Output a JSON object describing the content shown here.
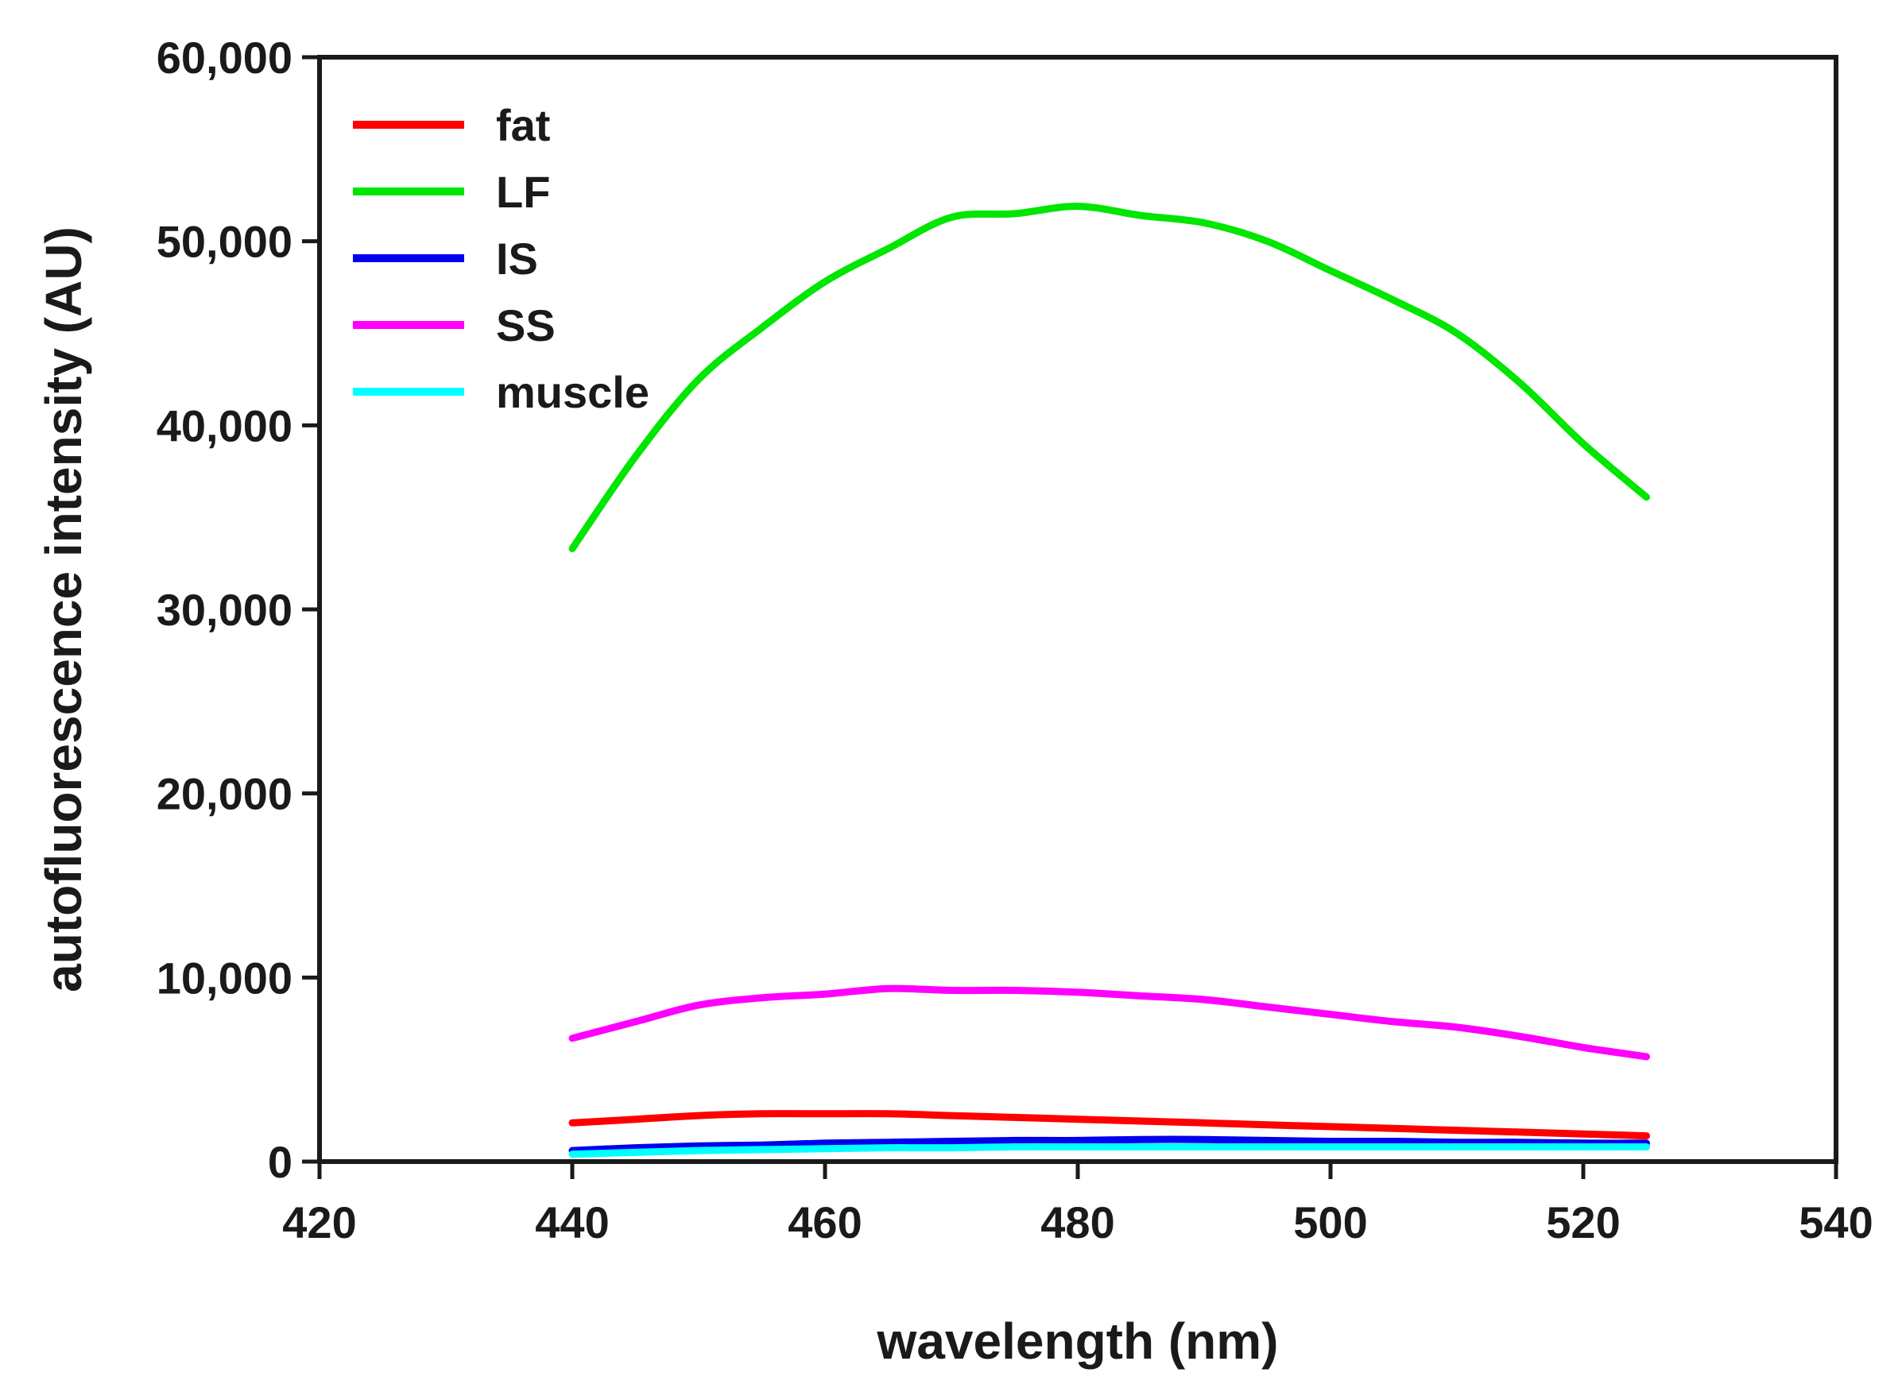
{
  "chart_data": {
    "type": "line",
    "title": "",
    "xlabel": "wavelength (nm)",
    "ylabel": "autofluorescence intensity (AU)",
    "xlim": [
      420,
      540
    ],
    "ylim": [
      0,
      60000
    ],
    "x_ticks": [
      420,
      440,
      460,
      480,
      500,
      520,
      540
    ],
    "x_tick_labels": [
      "420",
      "440",
      "460",
      "480",
      "500",
      "520",
      "540"
    ],
    "y_ticks": [
      0,
      10000,
      20000,
      30000,
      40000,
      50000,
      60000
    ],
    "y_tick_labels": [
      "0",
      "10,000",
      "20,000",
      "30,000",
      "40,000",
      "50,000",
      "60,000"
    ],
    "legend_position": "top-left",
    "x": [
      440,
      445,
      450,
      455,
      460,
      465,
      470,
      475,
      480,
      485,
      490,
      495,
      500,
      505,
      510,
      515,
      520,
      525
    ],
    "series": [
      {
        "name": "fat",
        "color": "#ff0000",
        "values": [
          2100,
          2300,
          2500,
          2600,
          2600,
          2600,
          2500,
          2400,
          2300,
          2200,
          2100,
          2000,
          1900,
          1800,
          1700,
          1600,
          1500,
          1400
        ]
      },
      {
        "name": "LF",
        "color": "#00e600",
        "values": [
          33300,
          38300,
          42500,
          45300,
          47800,
          49600,
          51300,
          51500,
          51900,
          51400,
          51000,
          50000,
          48400,
          46800,
          45000,
          42300,
          39000,
          36100
        ]
      },
      {
        "name": "IS",
        "color": "#0000ee",
        "values": [
          600,
          750,
          850,
          900,
          1000,
          1050,
          1100,
          1150,
          1150,
          1200,
          1200,
          1150,
          1100,
          1100,
          1050,
          1050,
          1000,
          1000
        ]
      },
      {
        "name": "SS",
        "color": "#ff00ff",
        "values": [
          6700,
          7600,
          8500,
          8900,
          9100,
          9400,
          9300,
          9300,
          9200,
          9000,
          8800,
          8400,
          8000,
          7600,
          7300,
          6800,
          6200,
          5700
        ]
      },
      {
        "name": "muscle",
        "color": "#00ffff",
        "values": [
          400,
          500,
          600,
          650,
          700,
          750,
          750,
          800,
          800,
          800,
          800,
          800,
          800,
          800,
          800,
          800,
          800,
          800
        ]
      }
    ]
  }
}
